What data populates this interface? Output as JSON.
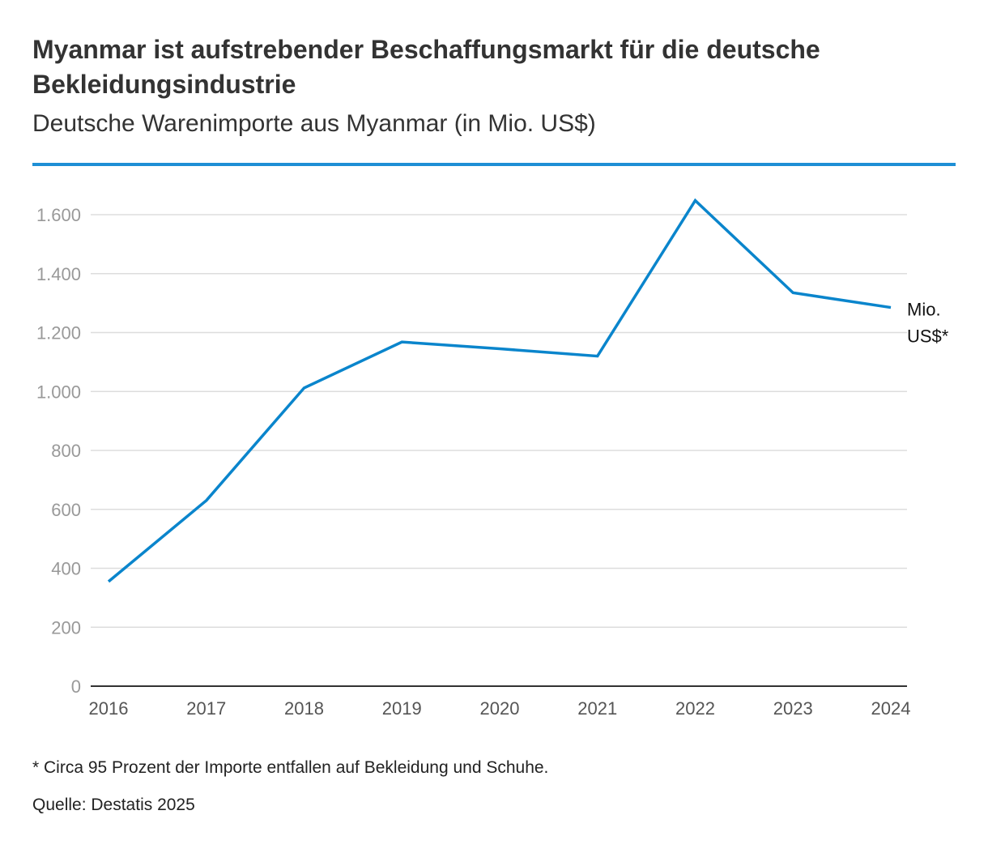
{
  "header": {
    "title": "Myanmar ist aufstrebender Beschaffungsmarkt für die deutsche Bekleidungsindustrie",
    "subtitle": "Deutsche Warenimporte aus Myanmar (in Mio. US$)"
  },
  "chart_data": {
    "type": "line",
    "title": "Myanmar ist aufstrebender Beschaffungsmarkt für die deutsche Bekleidungsindustrie",
    "subtitle": "Deutsche Warenimporte aus Myanmar (in Mio. US$)",
    "xlabel": "",
    "ylabel": "",
    "categories": [
      "2016",
      "2017",
      "2018",
      "2019",
      "2020",
      "2021",
      "2022",
      "2023",
      "2024"
    ],
    "series": [
      {
        "name": "Mio. US$*",
        "label_lines": [
          "Mio.",
          "US$*"
        ],
        "values": [
          355,
          630,
          1012,
          1168,
          1145,
          1120,
          1648,
          1335,
          1285
        ],
        "color": "#0a85cc"
      }
    ],
    "ylim": [
      0,
      1700
    ],
    "yticks": [
      0,
      200,
      400,
      600,
      800,
      1000,
      1200,
      1400,
      1600
    ],
    "ytick_labels": [
      "0",
      "200",
      "400",
      "600",
      "800",
      "1.000",
      "1.200",
      "1.400",
      "1.600"
    ],
    "grid": true,
    "legend": "end-of-line label"
  },
  "colors": {
    "accent": "#1e8fd5",
    "line": "#0a85cc",
    "grid": "#dddddd",
    "axis": "#333333"
  },
  "footer": {
    "note": "* Circa 95 Prozent der Importe entfallen auf Bekleidung und Schuhe.",
    "source": "Quelle: Destatis 2025"
  }
}
